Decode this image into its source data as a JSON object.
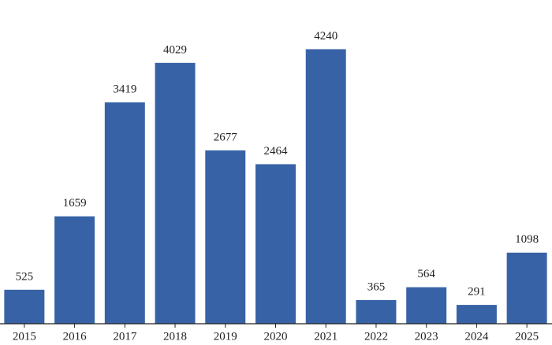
{
  "chart_data": {
    "type": "bar",
    "categories": [
      "2015",
      "2016",
      "2017",
      "2018",
      "2019",
      "2020",
      "2021",
      "2022",
      "2023",
      "2024",
      "2025"
    ],
    "values": [
      525,
      1659,
      3419,
      4029,
      2677,
      2464,
      4240,
      365,
      564,
      291,
      1098
    ],
    "color": "#3763a6",
    "ylim": [
      0,
      5000
    ]
  }
}
